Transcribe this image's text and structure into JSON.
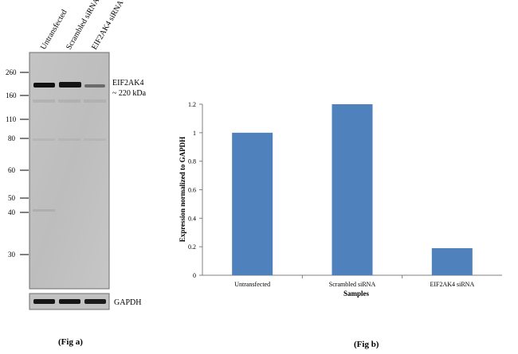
{
  "western_blot": {
    "lane_labels": [
      "Untransfected",
      "Scrambled siRNA",
      "EIF2AK4 siRNA"
    ],
    "mw_markers": [
      "260",
      "160",
      "110",
      "80",
      "60",
      "50",
      "40",
      "30"
    ],
    "target_label_line1": "EIF2AK4",
    "target_label_line2": "~ 220 kDa",
    "loading_control_label": "GAPDH",
    "caption": "(Fig a)"
  },
  "chart_data": {
    "type": "bar",
    "categories": [
      "Untransfected",
      "Scrambled siRNA",
      "EIF2AK4  siRNA"
    ],
    "values": [
      1.0,
      1.2,
      0.19
    ],
    "ylabel": "Expression normalized to GAPDH",
    "xlabel": "Samples",
    "ylim": [
      0,
      1.2
    ],
    "yticks": [
      "0",
      "0.2",
      "0.4",
      "0.6",
      "0.8",
      "1",
      "1.2"
    ],
    "bar_color": "#4f81bd",
    "grid": false,
    "caption": "(Fig b)"
  }
}
